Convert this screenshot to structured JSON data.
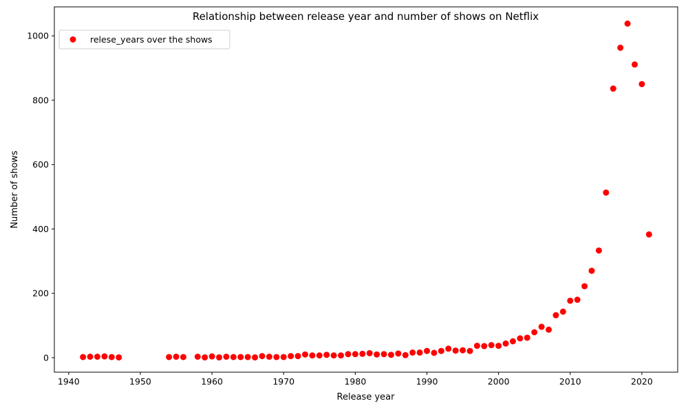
{
  "chart_data": {
    "type": "scatter",
    "title": "Relationship between release year and number of shows on Netflix",
    "xlabel": "Release year",
    "ylabel": "Number of shows",
    "xlim": [
      1938,
      2025
    ],
    "ylim": [
      -45,
      1090
    ],
    "xticks": [
      1940,
      1950,
      1960,
      1970,
      1980,
      1990,
      2000,
      2010,
      2020
    ],
    "yticks": [
      0,
      200,
      400,
      600,
      800,
      1000
    ],
    "grid": false,
    "legend_position": "top-left",
    "series": [
      {
        "name": "relese_years over the shows",
        "color": "#ff0000",
        "points": [
          [
            1942,
            2
          ],
          [
            1943,
            3
          ],
          [
            1944,
            3
          ],
          [
            1945,
            4
          ],
          [
            1946,
            2
          ],
          [
            1947,
            1
          ],
          [
            1954,
            2
          ],
          [
            1955,
            3
          ],
          [
            1956,
            2
          ],
          [
            1958,
            3
          ],
          [
            1959,
            1
          ],
          [
            1960,
            4
          ],
          [
            1961,
            1
          ],
          [
            1962,
            3
          ],
          [
            1963,
            2
          ],
          [
            1964,
            2
          ],
          [
            1965,
            2
          ],
          [
            1966,
            1
          ],
          [
            1967,
            5
          ],
          [
            1968,
            3
          ],
          [
            1969,
            2
          ],
          [
            1970,
            2
          ],
          [
            1971,
            5
          ],
          [
            1972,
            5
          ],
          [
            1973,
            10
          ],
          [
            1974,
            7
          ],
          [
            1975,
            7
          ],
          [
            1976,
            9
          ],
          [
            1977,
            7
          ],
          [
            1978,
            7
          ],
          [
            1979,
            11
          ],
          [
            1980,
            11
          ],
          [
            1981,
            12
          ],
          [
            1982,
            14
          ],
          [
            1983,
            10
          ],
          [
            1984,
            11
          ],
          [
            1985,
            9
          ],
          [
            1986,
            13
          ],
          [
            1987,
            8
          ],
          [
            1988,
            16
          ],
          [
            1989,
            16
          ],
          [
            1990,
            21
          ],
          [
            1991,
            15
          ],
          [
            1992,
            21
          ],
          [
            1993,
            28
          ],
          [
            1994,
            22
          ],
          [
            1995,
            23
          ],
          [
            1996,
            21
          ],
          [
            1997,
            37
          ],
          [
            1998,
            36
          ],
          [
            1999,
            39
          ],
          [
            2000,
            37
          ],
          [
            2001,
            44
          ],
          [
            2002,
            51
          ],
          [
            2003,
            60
          ],
          [
            2004,
            62
          ],
          [
            2005,
            79
          ],
          [
            2006,
            96
          ],
          [
            2007,
            87
          ],
          [
            2008,
            132
          ],
          [
            2009,
            143
          ],
          [
            2010,
            177
          ],
          [
            2011,
            180
          ],
          [
            2012,
            222
          ],
          [
            2013,
            270
          ],
          [
            2014,
            333
          ],
          [
            2015,
            513
          ],
          [
            2016,
            836
          ],
          [
            2017,
            963
          ],
          [
            2018,
            1038
          ],
          [
            2019,
            911
          ],
          [
            2020,
            850
          ],
          [
            2021,
            383
          ]
        ]
      }
    ]
  }
}
